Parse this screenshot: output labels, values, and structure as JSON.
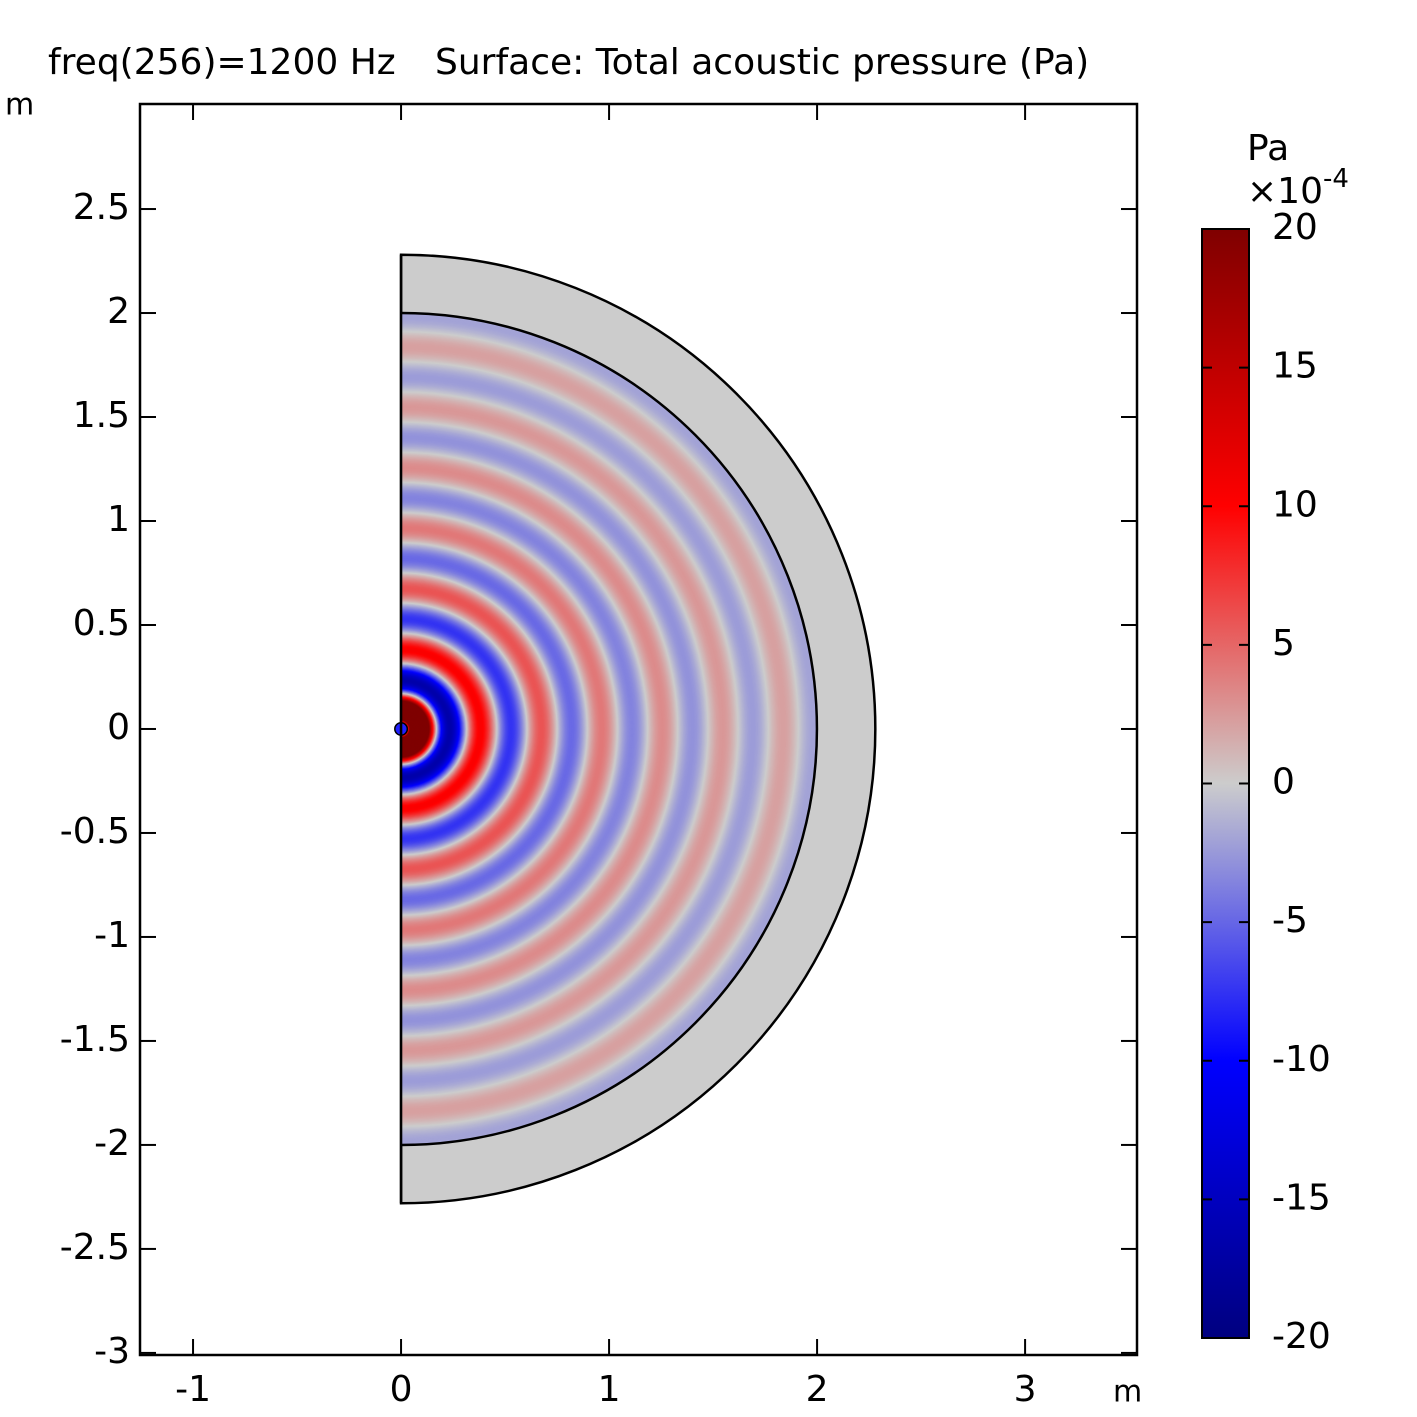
{
  "chart_data": {
    "type": "surface",
    "title": "freq(256)=1200 Hz",
    "subtitle": "Surface: Total acoustic pressure (Pa)",
    "x_unit": "m",
    "y_unit": "m",
    "xlim": [
      -1.255,
      3.538
    ],
    "ylim": [
      -3.01,
      3.005
    ],
    "xticks": [
      -1,
      0,
      1,
      2,
      3
    ],
    "yticks": [
      -3,
      -2.5,
      -2,
      -1.5,
      -1,
      -0.5,
      0,
      0.5,
      1,
      1.5,
      2,
      2.5
    ],
    "colorbar": {
      "unit": "Pa",
      "multiplier": "×10",
      "exponent": "-4",
      "clim": [
        -20,
        20
      ],
      "ticks": [
        -20,
        -15,
        -10,
        -5,
        0,
        5,
        10,
        15,
        20
      ],
      "colormap": [
        "#00007f",
        "#0000ff",
        "#cccccc",
        "#ff0000",
        "#7f0000"
      ]
    }
  }
}
